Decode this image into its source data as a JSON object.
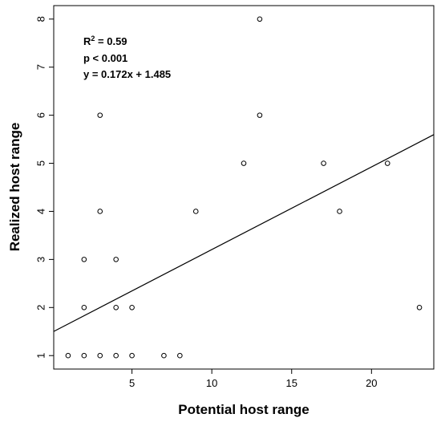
{
  "chart_data": {
    "type": "scatter",
    "xlabel": "Potential host range",
    "ylabel": "Realized host range",
    "xlim": [
      0.1,
      23.9
    ],
    "ylim": [
      0.72,
      8.28
    ],
    "x_ticks": [
      5,
      10,
      15,
      20
    ],
    "y_ticks": [
      1,
      2,
      3,
      4,
      5,
      6,
      7,
      8
    ],
    "grid": false,
    "points": [
      {
        "x": 1,
        "y": 1
      },
      {
        "x": 2,
        "y": 1
      },
      {
        "x": 3,
        "y": 1
      },
      {
        "x": 4,
        "y": 1
      },
      {
        "x": 5,
        "y": 1
      },
      {
        "x": 7,
        "y": 1
      },
      {
        "x": 8,
        "y": 1
      },
      {
        "x": 2,
        "y": 2
      },
      {
        "x": 4,
        "y": 2
      },
      {
        "x": 5,
        "y": 2
      },
      {
        "x": 2,
        "y": 3
      },
      {
        "x": 4,
        "y": 3
      },
      {
        "x": 3,
        "y": 4
      },
      {
        "x": 9,
        "y": 4
      },
      {
        "x": 18,
        "y": 4
      },
      {
        "x": 12,
        "y": 5
      },
      {
        "x": 17,
        "y": 5
      },
      {
        "x": 21,
        "y": 5
      },
      {
        "x": 3,
        "y": 6
      },
      {
        "x": 13,
        "y": 6
      },
      {
        "x": 13,
        "y": 8
      },
      {
        "x": 23,
        "y": 2
      }
    ],
    "regression": {
      "slope": 0.172,
      "intercept": 1.485
    },
    "annotations": {
      "r2_label": "R",
      "r2_sup": "2",
      "r2_value": " = 0.59",
      "p_text": "p < 0.001",
      "eq_text": "y =  0.172x + 1.485"
    }
  }
}
